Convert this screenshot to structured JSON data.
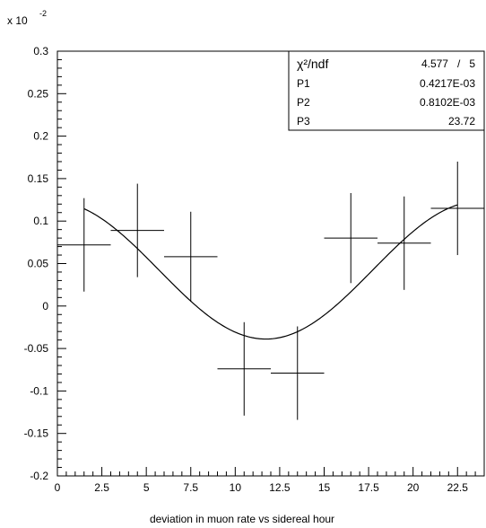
{
  "chart_data": {
    "type": "scatter",
    "xlabel": "deviation in muon rate vs sidereal hour",
    "ylabel": "",
    "y_multiplier": "x 10",
    "y_multiplier_exp": "-2",
    "xlim": [
      0,
      24
    ],
    "ylim": [
      -0.2,
      0.3
    ],
    "x_ticks": [
      0,
      2.5,
      5,
      7.5,
      10,
      12.5,
      15,
      17.5,
      20,
      22.5
    ],
    "x_tick_labels": [
      "0",
      "2.5",
      "5",
      "7.5",
      "10",
      "12.5",
      "15",
      "17.5",
      "20",
      "22.5"
    ],
    "y_ticks": [
      -0.2,
      -0.15,
      -0.1,
      -0.05,
      0,
      0.05,
      0.1,
      0.15,
      0.2,
      0.25,
      0.3
    ],
    "y_tick_labels": [
      "-0.2",
      "-0.15",
      "-0.1",
      "-0.05",
      "0",
      "0.05",
      "0.1",
      "0.15",
      "0.2",
      "0.25",
      "0.3"
    ],
    "points": [
      {
        "x": 1.5,
        "y": 0.072,
        "xerr": 1.5,
        "yerr": 0.055
      },
      {
        "x": 4.5,
        "y": 0.089,
        "xerr": 1.5,
        "yerr": 0.055
      },
      {
        "x": 7.5,
        "y": 0.058,
        "xerr": 1.5,
        "yerr": 0.053
      },
      {
        "x": 10.5,
        "y": -0.074,
        "xerr": 1.5,
        "yerr": 0.055
      },
      {
        "x": 13.5,
        "y": -0.079,
        "xerr": 1.5,
        "yerr": 0.055
      },
      {
        "x": 16.5,
        "y": 0.08,
        "xerr": 1.5,
        "yerr": 0.053
      },
      {
        "x": 19.5,
        "y": 0.074,
        "xerr": 1.5,
        "yerr": 0.055
      },
      {
        "x": 22.5,
        "y": 0.115,
        "xerr": 1.5,
        "yerr": 0.055
      }
    ],
    "fit": {
      "function": "P1 + P2*cos(2*pi*(x - P3)/24)",
      "x_range": [
        1.5,
        22.5
      ],
      "P1": 0.0004217,
      "P2": 0.0008102,
      "P3": 23.72
    },
    "stats_box": {
      "rows": [
        {
          "label": "χ²/ndf",
          "value": "4.577   /   5"
        },
        {
          "label": "P1",
          "value": "0.4217E-03"
        },
        {
          "label": "P2",
          "value": "0.8102E-03"
        },
        {
          "label": "P3",
          "value": "23.72"
        }
      ]
    }
  }
}
